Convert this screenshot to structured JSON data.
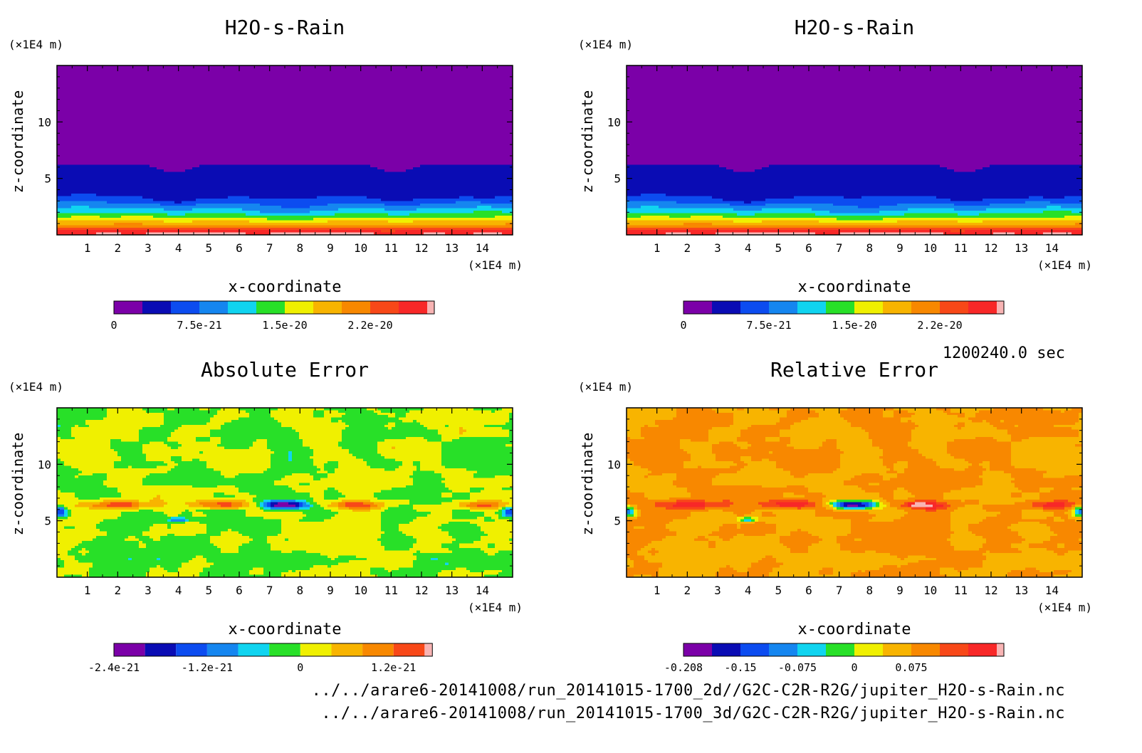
{
  "timestamp": "1200240.0 sec",
  "footer": {
    "line1": "../../arare6-20141008/run_20141015-1700_2d//G2C-C2R-R2G/jupiter_H2O-s-Rain.nc",
    "line2": "../../arare6-20141008/run_20141015-1700_3d/G2C-C2R-R2G/jupiter_H2O-s-Rain.nc"
  },
  "colors": {
    "levels_12": [
      "#7b00a8",
      "#0a0cb4",
      "#0c4cf0",
      "#1586f0",
      "#10d4f0",
      "#28e028",
      "#f0f000",
      "#f8b400",
      "#f88800",
      "#f84818",
      "#f82828",
      "#f8b4b4"
    ],
    "levels_11": [
      "#7b00a8",
      "#0a0cb4",
      "#0c4cf0",
      "#1586f0",
      "#10d4f0",
      "#28e028",
      "#f0f000",
      "#f8b400",
      "#f88800",
      "#f84818",
      "#f8b4b4"
    ]
  },
  "chart_data": [
    {
      "type": "heatmap",
      "title": "H2O-s-Rain",
      "xlabel": "x-coordinate",
      "ylabel": "z-coordinate",
      "x_unit": "(×1E4 m)",
      "y_unit": "(×1E4 m)",
      "xlim": [
        0,
        15
      ],
      "ylim": [
        0,
        15
      ],
      "x_ticks": [
        "1",
        "2",
        "3",
        "4",
        "5",
        "6",
        "7",
        "8",
        "9",
        "10",
        "11",
        "12",
        "13",
        "14"
      ],
      "y_ticks": [
        "5",
        "10"
      ],
      "colorbar_ticks": [
        "0",
        "7.5e-21",
        "1.5e-20",
        "2.2e-20"
      ],
      "colorbar_range": [
        0,
        2.6e-20
      ]
    },
    {
      "type": "heatmap",
      "title": "H2O-s-Rain",
      "xlabel": "x-coordinate",
      "ylabel": "z-coordinate",
      "x_unit": "(×1E4 m)",
      "y_unit": "(×1E4 m)",
      "xlim": [
        0,
        15
      ],
      "ylim": [
        0,
        15
      ],
      "x_ticks": [
        "1",
        "2",
        "3",
        "4",
        "5",
        "6",
        "7",
        "8",
        "9",
        "10",
        "11",
        "12",
        "13",
        "14"
      ],
      "y_ticks": [
        "5",
        "10"
      ],
      "colorbar_ticks": [
        "0",
        "7.5e-21",
        "1.5e-20",
        "2.2e-20"
      ],
      "colorbar_range": [
        0,
        2.6e-20
      ]
    },
    {
      "type": "heatmap",
      "title": "Absolute Error",
      "xlabel": "x-coordinate",
      "ylabel": "z-coordinate",
      "x_unit": "(×1E4 m)",
      "y_unit": "(×1E4 m)",
      "xlim": [
        0,
        15
      ],
      "ylim": [
        0,
        15
      ],
      "x_ticks": [
        "1",
        "2",
        "3",
        "4",
        "5",
        "6",
        "7",
        "8",
        "9",
        "10",
        "11",
        "12",
        "13",
        "14"
      ],
      "y_ticks": [
        "5",
        "10"
      ],
      "colorbar_ticks": [
        "-2.4e-21",
        "-1.2e-21",
        "0",
        "1.2e-21"
      ],
      "colorbar_range": [
        -3e-21,
        1.35e-21
      ]
    },
    {
      "type": "heatmap",
      "title": "Relative Error",
      "xlabel": "x-coordinate",
      "ylabel": "z-coordinate",
      "x_unit": "(×1E4 m)",
      "y_unit": "(×1E4 m)",
      "xlim": [
        0,
        15
      ],
      "ylim": [
        0,
        15
      ],
      "x_ticks": [
        "1",
        "2",
        "3",
        "4",
        "5",
        "6",
        "7",
        "8",
        "9",
        "10",
        "11",
        "12",
        "13",
        "14"
      ],
      "y_ticks": [
        "5",
        "10"
      ],
      "colorbar_ticks": [
        "-0.208",
        "-0.15",
        "-0.075",
        "0",
        "0.075"
      ],
      "colorbar_range": [
        -0.208,
        0.1
      ]
    }
  ]
}
